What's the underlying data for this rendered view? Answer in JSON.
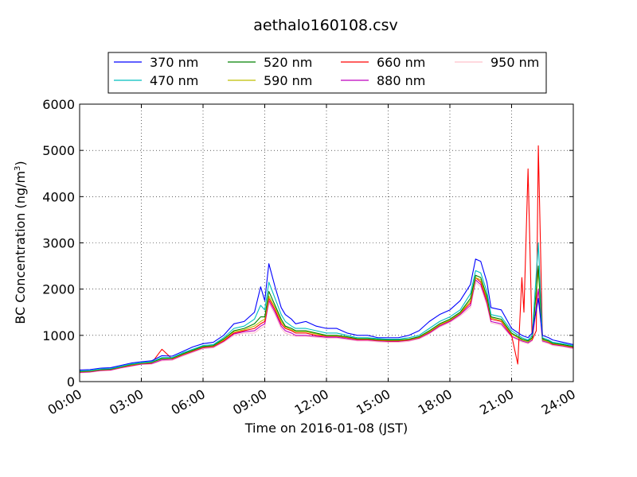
{
  "chart_data": {
    "type": "line",
    "title": "aethalo160108.csv",
    "xlabel": "Time on 2016-01-08 (JST)",
    "ylabel": "BC Concentration (ng/m³)",
    "ylabel_main": "BC Concentration (ng/m",
    "ylabel_sup": "3",
    "ylabel_close": ")",
    "xlim": [
      "00:00",
      "24:00"
    ],
    "ylim": [
      0,
      6000
    ],
    "x_ticks": [
      "00:00",
      "03:00",
      "06:00",
      "09:00",
      "12:00",
      "15:00",
      "18:00",
      "21:00",
      "24:00"
    ],
    "y_ticks": [
      0,
      1000,
      2000,
      3000,
      4000,
      5000,
      6000
    ],
    "grid": true,
    "legend_position": "top",
    "series": [
      {
        "name": "370 nm",
        "color": "#0000ff",
        "x": [
          0,
          0.5,
          1,
          1.5,
          2,
          2.5,
          3,
          3.5,
          4,
          4.5,
          5,
          5.5,
          6,
          6.5,
          7,
          7.5,
          8,
          8.5,
          8.8,
          9,
          9.2,
          9.5,
          9.8,
          10,
          10.3,
          10.5,
          11,
          11.5,
          12,
          12.5,
          13,
          13.5,
          14,
          14.5,
          15,
          15.5,
          16,
          16.5,
          17,
          17.5,
          18,
          18.5,
          19,
          19.25,
          19.5,
          19.8,
          20,
          20.5,
          21,
          21.5,
          21.8,
          22,
          22.3,
          22.5,
          22.8,
          23,
          23.5,
          24
        ],
        "y": [
          250,
          260,
          290,
          300,
          350,
          400,
          430,
          450,
          560,
          550,
          650,
          750,
          820,
          850,
          1000,
          1250,
          1300,
          1500,
          2050,
          1750,
          2550,
          2050,
          1600,
          1450,
          1350,
          1250,
          1300,
          1200,
          1150,
          1150,
          1050,
          1000,
          1000,
          950,
          950,
          950,
          1000,
          1100,
          1300,
          1450,
          1550,
          1750,
          2100,
          2650,
          2600,
          2150,
          1600,
          1550,
          1150,
          1000,
          950,
          1050,
          1800,
          1000,
          950,
          900,
          850,
          800
        ]
      },
      {
        "name": "470 nm",
        "color": "#00bfbf",
        "x": [
          0,
          0.5,
          1,
          1.5,
          2,
          2.5,
          3,
          3.5,
          4,
          4.5,
          5,
          5.5,
          6,
          6.5,
          7,
          7.5,
          8,
          8.5,
          8.8,
          9,
          9.2,
          9.5,
          9.8,
          10,
          10.3,
          10.5,
          11,
          11.5,
          12,
          12.5,
          13,
          13.5,
          14,
          14.5,
          15,
          15.5,
          16,
          16.5,
          17,
          17.5,
          18,
          18.5,
          19,
          19.25,
          19.5,
          19.8,
          20,
          20.5,
          21,
          21.5,
          21.8,
          22,
          22.3,
          22.5,
          22.8,
          23,
          23.5,
          24
        ],
        "y": [
          230,
          240,
          270,
          280,
          330,
          380,
          410,
          430,
          520,
          520,
          620,
          700,
          780,
          800,
          950,
          1150,
          1200,
          1350,
          1650,
          1550,
          2150,
          1800,
          1450,
          1300,
          1200,
          1150,
          1150,
          1100,
          1050,
          1050,
          1000,
          950,
          950,
          930,
          920,
          920,
          950,
          1000,
          1150,
          1300,
          1400,
          1550,
          1900,
          2400,
          2350,
          1950,
          1450,
          1400,
          1100,
          950,
          900,
          1000,
          3000,
          950,
          900,
          850,
          820,
          780
        ]
      },
      {
        "name": "520 nm",
        "color": "#008000",
        "x": [
          0,
          0.5,
          1,
          1.5,
          2,
          2.5,
          3,
          3.5,
          4,
          4.5,
          5,
          5.5,
          6,
          6.5,
          7,
          7.5,
          8,
          8.5,
          8.8,
          9,
          9.2,
          9.5,
          9.8,
          10,
          10.3,
          10.5,
          11,
          11.5,
          12,
          12.5,
          13,
          13.5,
          14,
          14.5,
          15,
          15.5,
          16,
          16.5,
          17,
          17.5,
          18,
          18.5,
          19,
          19.25,
          19.5,
          19.8,
          20,
          20.5,
          21,
          21.5,
          21.8,
          22,
          22.3,
          22.5,
          22.8,
          23,
          23.5,
          24
        ],
        "y": [
          220,
          230,
          260,
          270,
          320,
          370,
          400,
          420,
          500,
          510,
          600,
          680,
          760,
          780,
          920,
          1100,
          1150,
          1250,
          1400,
          1400,
          1950,
          1650,
          1350,
          1200,
          1150,
          1100,
          1100,
          1050,
          1000,
          1000,
          970,
          930,
          930,
          910,
          900,
          900,
          920,
          970,
          1100,
          1250,
          1350,
          1500,
          1800,
          2300,
          2250,
          1850,
          1400,
          1350,
          1050,
          920,
          880,
          950,
          2500,
          920,
          880,
          830,
          800,
          760
        ]
      },
      {
        "name": "590 nm",
        "color": "#bfbf00",
        "x": [
          0,
          0.5,
          1,
          1.5,
          2,
          2.5,
          3,
          3.5,
          4,
          4.5,
          5,
          5.5,
          6,
          6.5,
          7,
          7.5,
          8,
          8.5,
          8.8,
          9,
          9.2,
          9.5,
          9.8,
          10,
          10.3,
          10.5,
          11,
          11.5,
          12,
          12.5,
          13,
          13.5,
          14,
          14.5,
          15,
          15.5,
          16,
          16.5,
          17,
          17.5,
          18,
          18.5,
          19,
          19.25,
          19.5,
          19.8,
          20,
          20.5,
          21,
          21.5,
          21.8,
          22,
          22.3,
          22.5,
          22.8,
          23,
          23.5,
          24
        ],
        "y": [
          215,
          225,
          255,
          265,
          315,
          360,
          395,
          410,
          490,
          500,
          590,
          670,
          750,
          770,
          900,
          1080,
          1120,
          1200,
          1300,
          1350,
          1850,
          1600,
          1300,
          1180,
          1120,
          1080,
          1080,
          1030,
          990,
          990,
          960,
          920,
          920,
          900,
          890,
          890,
          910,
          960,
          1080,
          1230,
          1330,
          1480,
          1750,
          2250,
          2200,
          1800,
          1380,
          1320,
          1030,
          900,
          860,
          930,
          2400,
          900,
          860,
          820,
          790,
          750
        ]
      },
      {
        "name": "660 nm",
        "color": "#ff0000",
        "x": [
          0,
          0.5,
          1,
          1.5,
          2,
          2.5,
          3,
          3.5,
          4,
          4.5,
          5,
          5.5,
          6,
          6.5,
          7,
          7.5,
          8,
          8.5,
          8.8,
          9,
          9.2,
          9.5,
          9.8,
          10,
          10.3,
          10.5,
          11,
          11.5,
          12,
          12.5,
          13,
          13.5,
          14,
          14.5,
          15,
          15.5,
          16,
          16.5,
          17,
          17.5,
          18,
          18.5,
          19,
          19.25,
          19.5,
          19.8,
          20,
          20.5,
          21,
          21.3,
          21.5,
          21.6,
          21.8,
          22,
          22.2,
          22.3,
          22.5,
          22.6,
          22.8,
          23,
          23.5,
          24
        ],
        "y": [
          210,
          220,
          250,
          260,
          310,
          350,
          390,
          400,
          700,
          490,
          580,
          660,
          740,
          760,
          880,
          1050,
          1100,
          1150,
          1250,
          1300,
          1800,
          1550,
          1250,
          1150,
          1100,
          1050,
          1050,
          1000,
          980,
          980,
          950,
          910,
          910,
          890,
          880,
          880,
          900,
          950,
          1070,
          1220,
          1320,
          1470,
          1700,
          2250,
          2150,
          1750,
          1350,
          1300,
          1000,
          380,
          2250,
          1500,
          4600,
          900,
          1100,
          5100,
          950,
          900,
          850,
          810,
          780,
          740
        ]
      },
      {
        "name": "880 nm",
        "color": "#bf00bf",
        "x": [
          0,
          0.5,
          1,
          1.5,
          2,
          2.5,
          3,
          3.5,
          4,
          4.5,
          5,
          5.5,
          6,
          6.5,
          7,
          7.5,
          8,
          8.5,
          8.8,
          9,
          9.2,
          9.5,
          9.8,
          10,
          10.3,
          10.5,
          11,
          11.5,
          12,
          12.5,
          13,
          13.5,
          14,
          14.5,
          15,
          15.5,
          16,
          16.5,
          17,
          17.5,
          18,
          18.5,
          19,
          19.25,
          19.5,
          19.8,
          20,
          20.5,
          21,
          21.5,
          21.8,
          22,
          22.3,
          22.5,
          22.8,
          23,
          23.5,
          24
        ],
        "y": [
          200,
          210,
          240,
          250,
          300,
          340,
          380,
          390,
          470,
          480,
          570,
          650,
          730,
          750,
          870,
          1030,
          1080,
          1100,
          1200,
          1250,
          1750,
          1500,
          1200,
          1100,
          1050,
          1000,
          1000,
          980,
          960,
          960,
          930,
          900,
          900,
          880,
          870,
          870,
          890,
          940,
          1050,
          1200,
          1300,
          1450,
          1650,
          2200,
          2100,
          1700,
          1300,
          1250,
          980,
          880,
          840,
          900,
          2000,
          880,
          840,
          800,
          770,
          730
        ]
      },
      {
        "name": "950 nm",
        "color": "#ffc0cb",
        "x": [
          0,
          0.5,
          1,
          1.5,
          2,
          2.5,
          3,
          3.5,
          4,
          4.5,
          5,
          5.5,
          6,
          6.5,
          7,
          7.5,
          8,
          8.5,
          8.8,
          9,
          9.2,
          9.5,
          9.8,
          10,
          10.3,
          10.5,
          11,
          11.5,
          12,
          12.5,
          13,
          13.5,
          14,
          14.5,
          15,
          15.5,
          16,
          16.5,
          17,
          17.5,
          18,
          18.5,
          19,
          19.25,
          19.5,
          19.8,
          20,
          20.5,
          21,
          21.5,
          21.8,
          22,
          22.3,
          22.5,
          22.8,
          23,
          23.5,
          24
        ],
        "y": [
          190,
          200,
          230,
          240,
          290,
          330,
          370,
          380,
          450,
          460,
          550,
          630,
          710,
          730,
          850,
          1000,
          1050,
          1050,
          1150,
          1200,
          1700,
          1450,
          1150,
          1050,
          1000,
          980,
          980,
          960,
          940,
          940,
          910,
          880,
          880,
          860,
          850,
          850,
          870,
          920,
          1030,
          1180,
          1280,
          1420,
          1600,
          2150,
          2050,
          1650,
          1270,
          1220,
          960,
          860,
          820,
          880,
          1800,
          860,
          820,
          780,
          750,
          710
        ]
      }
    ]
  }
}
